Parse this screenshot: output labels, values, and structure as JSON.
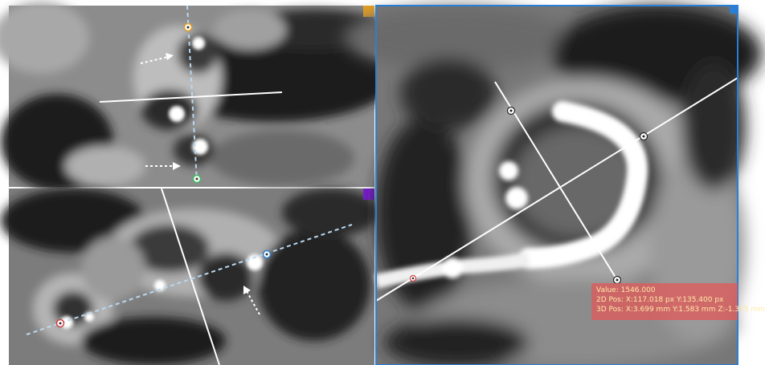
{
  "viewports": [
    {
      "id": "top-left",
      "accent_color": "#e8a020"
    },
    {
      "id": "bottom-left",
      "accent_color": "#7a1fd0"
    },
    {
      "id": "right",
      "accent_color": "#2a7fd4"
    }
  ],
  "readout": {
    "value_label": "Value:",
    "value": "1546.000",
    "pos2d_label": "2D Pos:",
    "pos2d_x": "X:117.018 px",
    "pos2d_y": "Y:135.400 px",
    "pos3d_label": "3D Pos:",
    "pos3d_x": "X:3.699 mm",
    "pos3d_y": "Y:1.583 mm",
    "pos3d_z": "Z:-1.375 mm"
  },
  "colors": {
    "dashed_line": "#b9d8f0",
    "solid_line": "#ffffff",
    "handle_orange": "#e8a020",
    "handle_green": "#3cc060",
    "handle_red": "#d04040",
    "readout_bg": "#e15a5a",
    "readout_text": "#ffe9a8"
  }
}
